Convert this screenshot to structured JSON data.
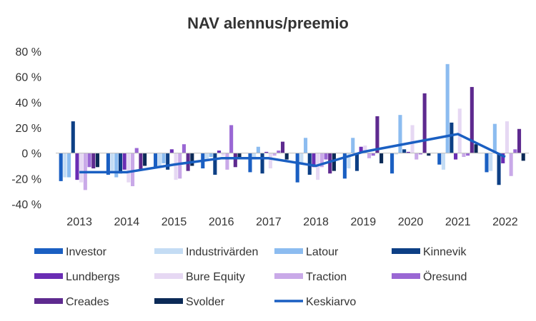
{
  "chart_data": {
    "type": "bar",
    "title": "NAV alennus/preemio",
    "xlabel": "",
    "ylabel": "",
    "categories": [
      "2013",
      "2014",
      "2015",
      "2016",
      "2017",
      "2018",
      "2019",
      "2020",
      "2021",
      "2022"
    ],
    "ylim": [
      -40,
      80
    ],
    "yticks": [
      -40,
      -20,
      0,
      20,
      40,
      60,
      80
    ],
    "ytick_labels": [
      "-40 %",
      "-20 %",
      "0 %",
      "20 %",
      "40 %",
      "60 %",
      "80 %"
    ],
    "grid": false,
    "legend_position": "bottom",
    "series": [
      {
        "name": "Investor",
        "color": "#1a5fc2",
        "values": [
          -22,
          -17,
          -12,
          -12,
          -15,
          -23,
          -20,
          -16,
          -9,
          -15
        ]
      },
      {
        "name": "Industrivärden",
        "color": "#c4dcf4",
        "values": [
          -19,
          -15,
          -10,
          -5,
          -5,
          -8,
          -12,
          -1,
          -13,
          -14
        ]
      },
      {
        "name": "Latour",
        "color": "#8cbcf0",
        "values": [
          -19,
          -19,
          -8,
          -3,
          5,
          12,
          12,
          30,
          70,
          23
        ]
      },
      {
        "name": "Kinnevik",
        "color": "#0d3f85",
        "values": [
          25,
          -16,
          -13,
          -17,
          -16,
          -17,
          -14,
          3,
          24,
          -25
        ]
      },
      {
        "name": "Lundbergs",
        "color": "#6a2db4",
        "values": [
          -21,
          -13,
          3,
          2,
          1,
          -11,
          5,
          1,
          -5,
          -8
        ]
      },
      {
        "name": "Bure Equity",
        "color": "#e6d8f3",
        "values": [
          -23,
          -23,
          -21,
          -2,
          -12,
          -21,
          6,
          22,
          35,
          25
        ]
      },
      {
        "name": "Traction",
        "color": "#c9a9e8",
        "values": [
          -29,
          -26,
          -20,
          -13,
          -2,
          -11,
          -4,
          -5,
          -3,
          -18
        ]
      },
      {
        "name": "Öresund",
        "color": "#9a67d4",
        "values": [
          -11,
          4,
          7,
          22,
          2,
          -5,
          -2,
          -1,
          -2,
          3
        ]
      },
      {
        "name": "Creades",
        "color": "#5e2a8f",
        "values": [
          -12,
          -13,
          -14,
          -11,
          9,
          -16,
          29,
          47,
          52,
          19
        ]
      },
      {
        "name": "Svolder",
        "color": "#0b2a57",
        "values": [
          -11,
          -10,
          -10,
          -3,
          -5,
          -14,
          -8,
          -2,
          7,
          -6
        ]
      }
    ],
    "line_series": {
      "name": "Keskiarvo",
      "color": "#1a5fc2",
      "values": [
        -15,
        -15,
        -9,
        -4,
        -4,
        -10,
        1,
        8,
        15,
        -3
      ]
    }
  }
}
